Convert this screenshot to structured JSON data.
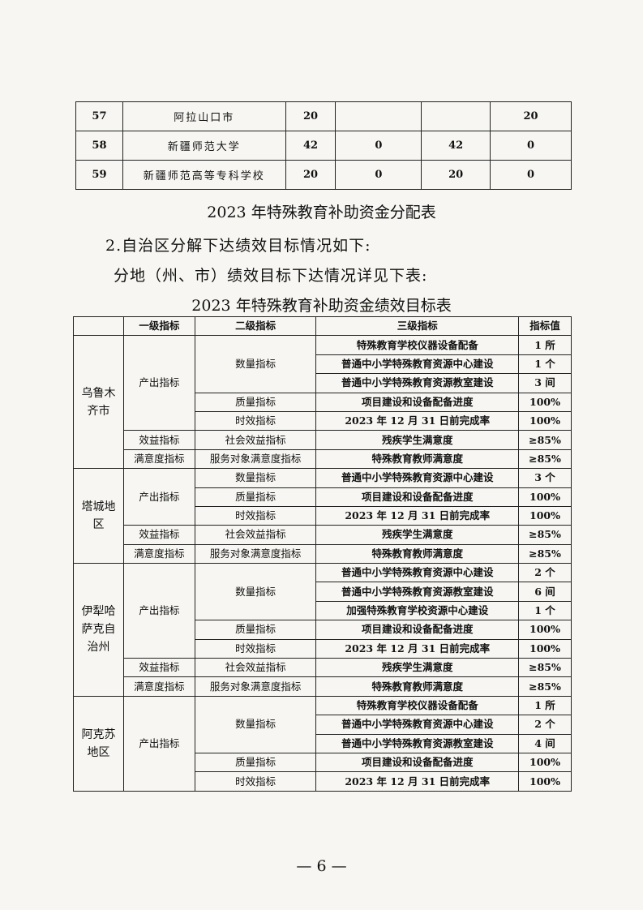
{
  "alloc_table": {
    "rows": [
      {
        "no": "57",
        "name": "阿拉山口市",
        "c1": "20",
        "c2": "",
        "c3": "",
        "c4": "20"
      },
      {
        "no": "58",
        "name": "新疆师范大学",
        "c1": "42",
        "c2": "0",
        "c3": "42",
        "c4": "0"
      },
      {
        "no": "59",
        "name": "新疆师范高等专科学校",
        "c1": "20",
        "c2": "0",
        "c3": "20",
        "c4": "0"
      }
    ]
  },
  "alloc_caption": "2023 年特殊教育补助资金分配表",
  "para1": "2.自治区分解下达绩效目标情况如下:",
  "para2": "分地（州、市）绩效目标下达情况详见下表:",
  "perf_caption": "2023 年特殊教育补助资金绩效目标表",
  "perf_table": {
    "headers": [
      "",
      "一级指标",
      "二级指标",
      "三级指标",
      "指标值"
    ],
    "regions": [
      {
        "name": "乌鲁木齐市",
        "groups": [
          {
            "l1": "产出指标",
            "subs": [
              {
                "l2": "数量指标",
                "items": [
                  [
                    "特殊教育学校仪器设备配备",
                    "1 所"
                  ],
                  [
                    "普通中小学特殊教育资源中心建设",
                    "1 个"
                  ],
                  [
                    "普通中小学特殊教育资源教室建设",
                    "3 间"
                  ]
                ]
              },
              {
                "l2": "质量指标",
                "items": [
                  [
                    "项目建设和设备配备进度",
                    "100%"
                  ]
                ]
              },
              {
                "l2": "时效指标",
                "items": [
                  [
                    "2023 年 12 月 31 日前完成率",
                    "100%"
                  ]
                ]
              }
            ]
          },
          {
            "l1": "效益指标",
            "subs": [
              {
                "l2": "社会效益指标",
                "items": [
                  [
                    "残疾学生满意度",
                    "≥85%"
                  ]
                ]
              }
            ]
          },
          {
            "l1": "满意度指标",
            "subs": [
              {
                "l2": "服务对象满意度指标",
                "items": [
                  [
                    "特殊教育教师满意度",
                    "≥85%"
                  ]
                ]
              }
            ]
          }
        ]
      },
      {
        "name": "塔城地区",
        "groups": [
          {
            "l1": "产出指标",
            "subs": [
              {
                "l2": "数量指标",
                "items": [
                  [
                    "普通中小学特殊教育资源中心建设",
                    "3 个"
                  ]
                ]
              },
              {
                "l2": "质量指标",
                "items": [
                  [
                    "项目建设和设备配备进度",
                    "100%"
                  ]
                ]
              },
              {
                "l2": "时效指标",
                "items": [
                  [
                    "2023 年 12 月 31 日前完成率",
                    "100%"
                  ]
                ]
              }
            ]
          },
          {
            "l1": "效益指标",
            "subs": [
              {
                "l2": "社会效益指标",
                "items": [
                  [
                    "残疾学生满意度",
                    "≥85%"
                  ]
                ]
              }
            ]
          },
          {
            "l1": "满意度指标",
            "subs": [
              {
                "l2": "服务对象满意度指标",
                "items": [
                  [
                    "特殊教育教师满意度",
                    "≥85%"
                  ]
                ]
              }
            ]
          }
        ]
      },
      {
        "name": "伊犁哈萨克自治州",
        "groups": [
          {
            "l1": "产出指标",
            "subs": [
              {
                "l2": "数量指标",
                "items": [
                  [
                    "普通中小学特殊教育资源中心建设",
                    "2 个"
                  ],
                  [
                    "普通中小学特殊教育资源教室建设",
                    "6 间"
                  ],
                  [
                    "加强特殊教育学校资源中心建设",
                    "1 个"
                  ]
                ]
              },
              {
                "l2": "质量指标",
                "items": [
                  [
                    "项目建设和设备配备进度",
                    "100%"
                  ]
                ]
              },
              {
                "l2": "时效指标",
                "items": [
                  [
                    "2023 年 12 月 31 日前完成率",
                    "100%"
                  ]
                ]
              }
            ]
          },
          {
            "l1": "效益指标",
            "subs": [
              {
                "l2": "社会效益指标",
                "items": [
                  [
                    "残疾学生满意度",
                    "≥85%"
                  ]
                ]
              }
            ]
          },
          {
            "l1": "满意度指标",
            "subs": [
              {
                "l2": "服务对象满意度指标",
                "items": [
                  [
                    "特殊教育教师满意度",
                    "≥85%"
                  ]
                ]
              }
            ]
          }
        ]
      },
      {
        "name": "阿克苏地区",
        "groups": [
          {
            "l1": "产出指标",
            "subs": [
              {
                "l2": "数量指标",
                "items": [
                  [
                    "特殊教育学校仪器设备配备",
                    "1 所"
                  ],
                  [
                    "普通中小学特殊教育资源中心建设",
                    "2 个"
                  ],
                  [
                    "普通中小学特殊教育资源教室建设",
                    "4 间"
                  ]
                ]
              },
              {
                "l2": "质量指标",
                "items": [
                  [
                    "项目建设和设备配备进度",
                    "100%"
                  ]
                ]
              },
              {
                "l2": "时效指标",
                "items": [
                  [
                    "2023 年 12 月 31 日前完成率",
                    "100%"
                  ]
                ]
              }
            ]
          }
        ]
      }
    ]
  },
  "page_number": "— 6 —"
}
